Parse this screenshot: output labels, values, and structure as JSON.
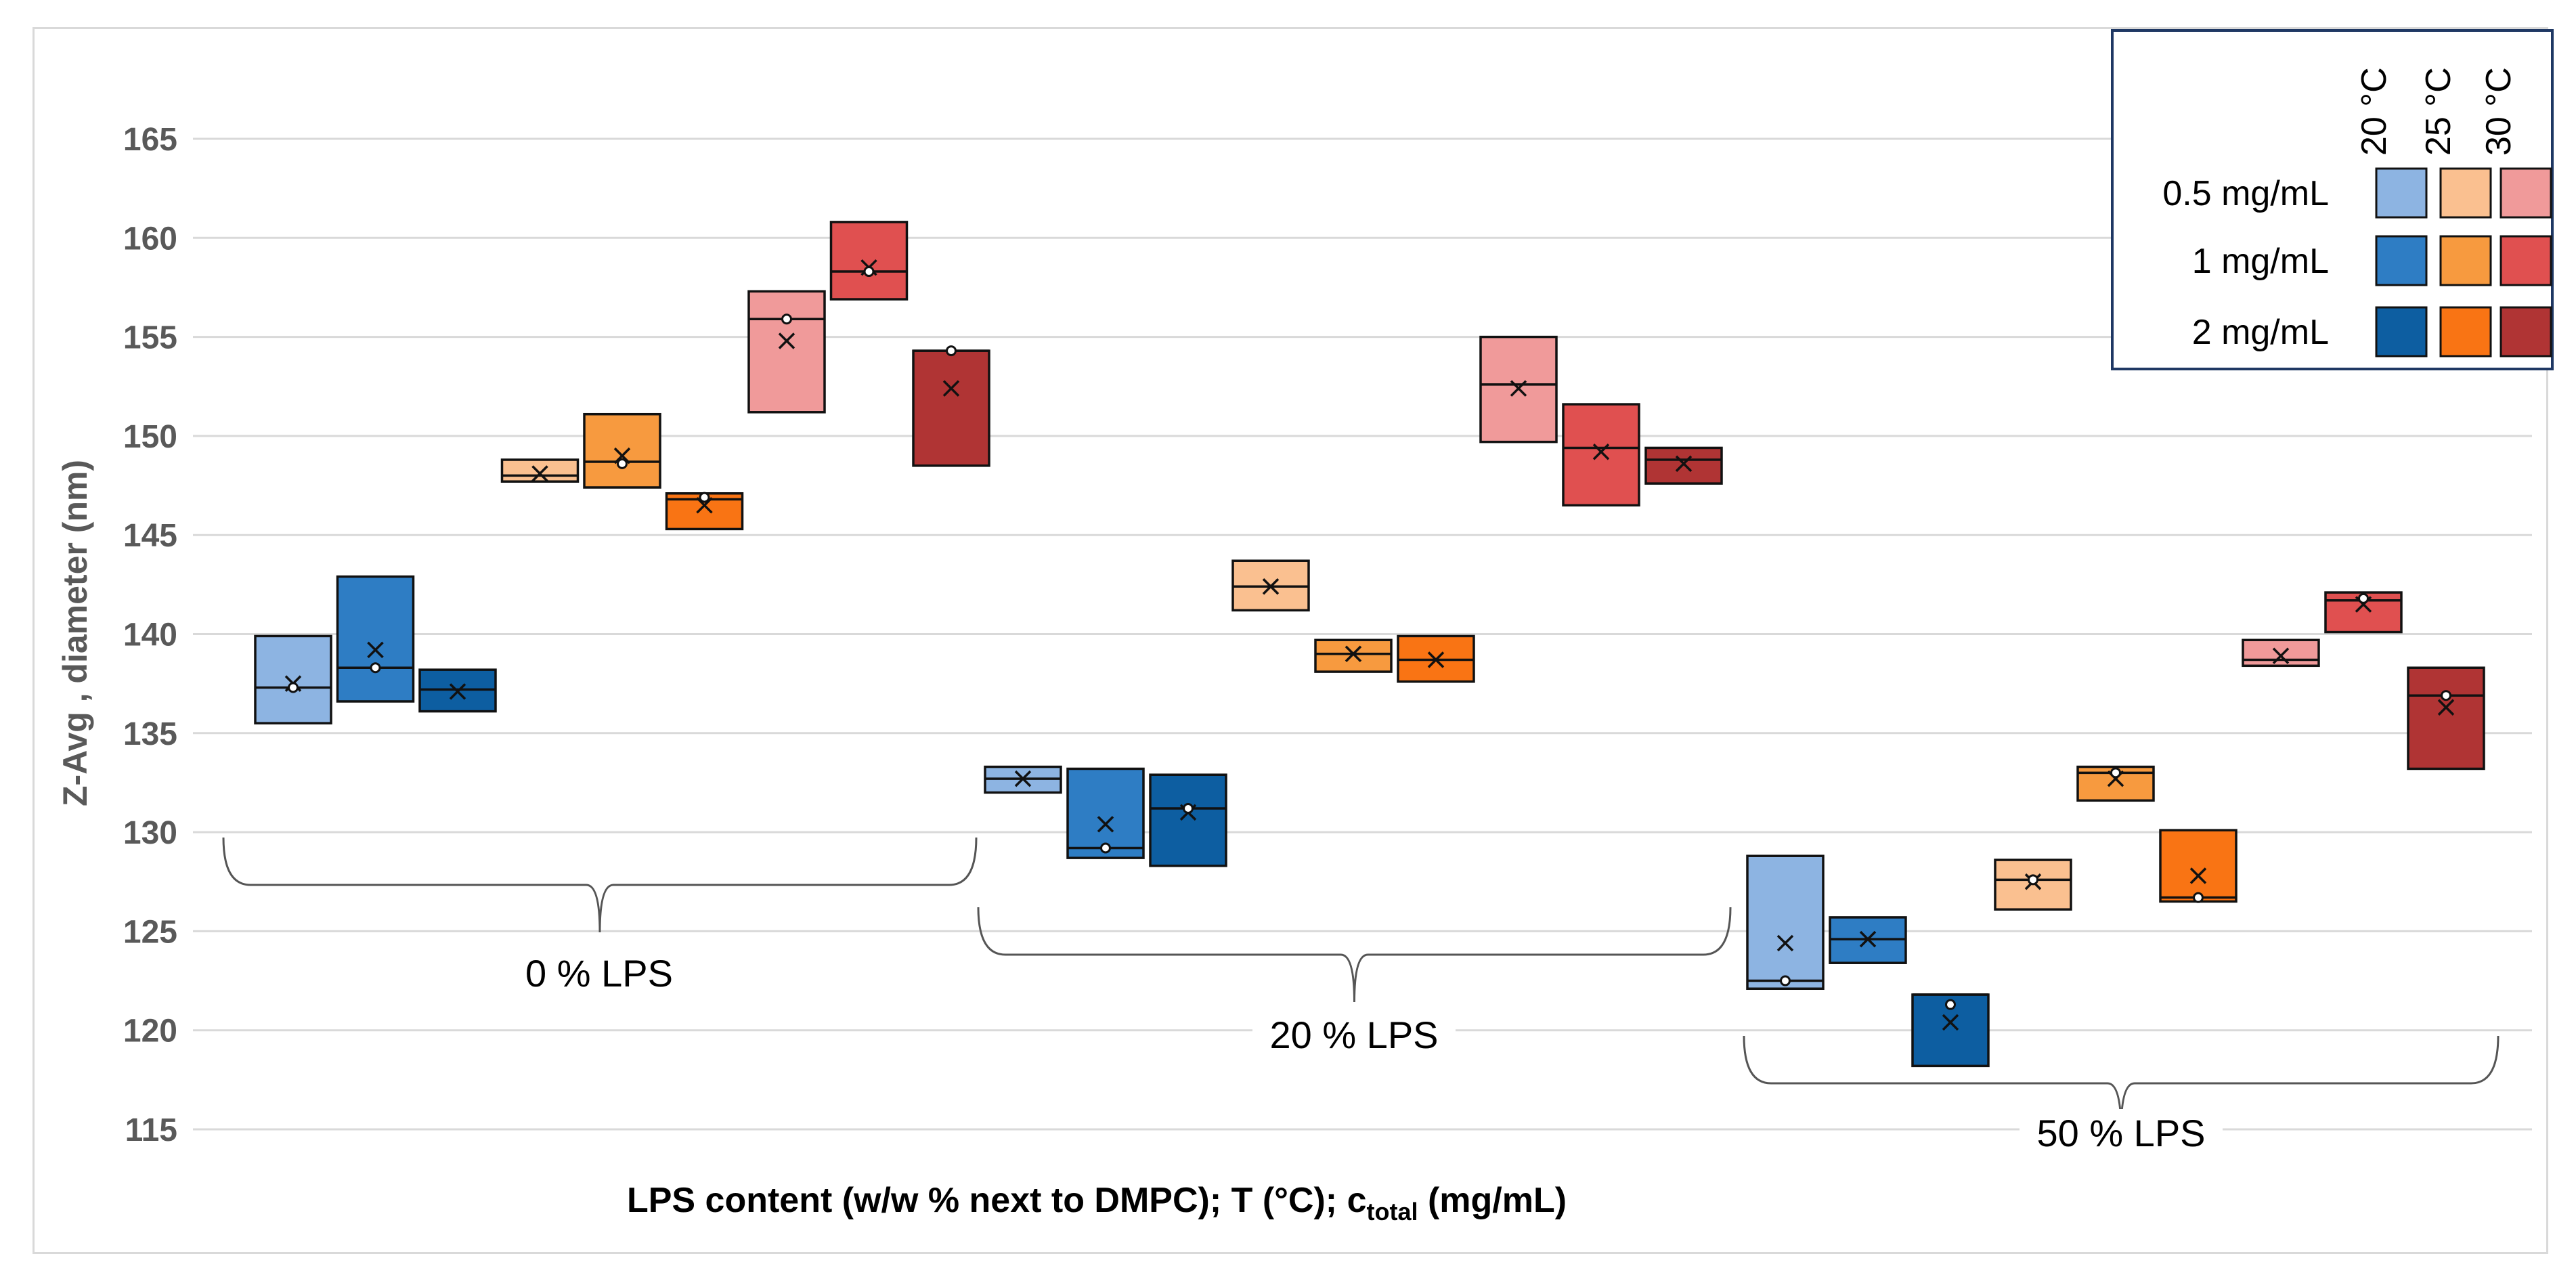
{
  "chart_data": {
    "type": "box",
    "title": "",
    "ylabel": "Z-Avg , diameter (nm)",
    "xlabel": {
      "main": "LPS content (w/w % next to DMPC); T (°C); c",
      "sub": "total",
      "tail": " (mg/mL)"
    },
    "ylim": [
      115,
      165
    ],
    "yticks": [
      115,
      120,
      125,
      130,
      135,
      140,
      145,
      150,
      155,
      160,
      165
    ],
    "groups": [
      "0 % LPS",
      "20 % LPS",
      "50 % LPS"
    ],
    "legend": {
      "temperatures": [
        "20 °C",
        "25 °C",
        "30 °C"
      ],
      "concentrations": [
        "0.5 mg/mL",
        "1 mg/mL",
        "2 mg/mL"
      ],
      "colors": [
        [
          "#8db4e2",
          "#fac090",
          "#f09a9a"
        ],
        [
          "#2e7dc4",
          "#f79a3f",
          "#e05050"
        ],
        [
          "#0d5ea1",
          "#f97414",
          "#b03434"
        ]
      ]
    },
    "boxes": [
      {
        "group": "0 % LPS",
        "temp": "20 °C",
        "conc": "0.5 mg/mL",
        "min": 135.5,
        "max": 139.9,
        "median": 137.3,
        "mean": 137.5,
        "points": [
          137.3
        ]
      },
      {
        "group": "0 % LPS",
        "temp": "20 °C",
        "conc": "1 mg/mL",
        "min": 136.6,
        "max": 142.9,
        "median": 138.3,
        "mean": 139.2,
        "points": [
          138.3
        ]
      },
      {
        "group": "0 % LPS",
        "temp": "20 °C",
        "conc": "2 mg/mL",
        "min": 136.1,
        "max": 138.2,
        "median": 137.2,
        "mean": 137.1,
        "points": []
      },
      {
        "group": "0 % LPS",
        "temp": "25 °C",
        "conc": "0.5 mg/mL",
        "min": 147.7,
        "max": 148.8,
        "median": 148.0,
        "mean": 148.1,
        "points": []
      },
      {
        "group": "0 % LPS",
        "temp": "25 °C",
        "conc": "1 mg/mL",
        "min": 147.4,
        "max": 151.1,
        "median": 148.7,
        "mean": 149.0,
        "points": [
          148.6
        ]
      },
      {
        "group": "0 % LPS",
        "temp": "25 °C",
        "conc": "2 mg/mL",
        "min": 145.3,
        "max": 147.1,
        "median": 146.8,
        "mean": 146.5,
        "points": [
          146.9
        ]
      },
      {
        "group": "0 % LPS",
        "temp": "30 °C",
        "conc": "0.5 mg/mL",
        "min": 151.2,
        "max": 157.3,
        "median": 155.9,
        "mean": 154.8,
        "points": [
          155.9
        ]
      },
      {
        "group": "0 % LPS",
        "temp": "30 °C",
        "conc": "1 mg/mL",
        "min": 156.9,
        "max": 160.8,
        "median": 158.3,
        "mean": 158.5,
        "points": [
          158.3
        ]
      },
      {
        "group": "0 % LPS",
        "temp": "30 °C",
        "conc": "2 mg/mL",
        "min": 148.5,
        "max": 154.3,
        "median": 154.3,
        "mean": 152.4,
        "points": [
          154.3
        ]
      },
      {
        "group": "20 % LPS",
        "temp": "20 °C",
        "conc": "0.5 mg/mL",
        "min": 132.0,
        "max": 133.3,
        "median": 132.7,
        "mean": 132.7,
        "points": []
      },
      {
        "group": "20 % LPS",
        "temp": "20 °C",
        "conc": "1 mg/mL",
        "min": 128.7,
        "max": 133.2,
        "median": 129.2,
        "mean": 130.4,
        "points": [
          129.2
        ]
      },
      {
        "group": "20 % LPS",
        "temp": "20 °C",
        "conc": "2 mg/mL",
        "min": 128.3,
        "max": 132.9,
        "median": 131.2,
        "mean": 131.0,
        "points": [
          131.2
        ]
      },
      {
        "group": "20 % LPS",
        "temp": "25 °C",
        "conc": "0.5 mg/mL",
        "min": 141.2,
        "max": 143.7,
        "median": 142.4,
        "mean": 142.4,
        "points": []
      },
      {
        "group": "20 % LPS",
        "temp": "25 °C",
        "conc": "1 mg/mL",
        "min": 138.1,
        "max": 139.7,
        "median": 139.0,
        "mean": 139.0,
        "points": []
      },
      {
        "group": "20 % LPS",
        "temp": "25 °C",
        "conc": "2 mg/mL",
        "min": 137.6,
        "max": 139.9,
        "median": 138.7,
        "mean": 138.7,
        "points": []
      },
      {
        "group": "20 % LPS",
        "temp": "30 °C",
        "conc": "0.5 mg/mL",
        "min": 149.7,
        "max": 155.0,
        "median": 152.6,
        "mean": 152.4,
        "points": []
      },
      {
        "group": "20 % LPS",
        "temp": "30 °C",
        "conc": "1 mg/mL",
        "min": 146.5,
        "max": 151.6,
        "median": 149.4,
        "mean": 149.2,
        "points": []
      },
      {
        "group": "20 % LPS",
        "temp": "30 °C",
        "conc": "2 mg/mL",
        "min": 147.6,
        "max": 149.4,
        "median": 148.8,
        "mean": 148.6,
        "points": []
      },
      {
        "group": "50 % LPS",
        "temp": "20 °C",
        "conc": "0.5 mg/mL",
        "min": 122.1,
        "max": 128.8,
        "median": 122.5,
        "mean": 124.4,
        "points": [
          122.5
        ]
      },
      {
        "group": "50 % LPS",
        "temp": "20 °C",
        "conc": "1 mg/mL",
        "min": 123.4,
        "max": 125.7,
        "median": 124.6,
        "mean": 124.6,
        "points": []
      },
      {
        "group": "50 % LPS",
        "temp": "20 °C",
        "conc": "2 mg/mL",
        "min": 118.2,
        "max": 121.8,
        "median": 121.8,
        "mean": 120.4,
        "points": [
          121.3
        ]
      },
      {
        "group": "50 % LPS",
        "temp": "25 °C",
        "conc": "0.5 mg/mL",
        "min": 126.1,
        "max": 128.6,
        "median": 127.6,
        "mean": 127.5,
        "points": [
          127.6
        ]
      },
      {
        "group": "50 % LPS",
        "temp": "25 °C",
        "conc": "1 mg/mL",
        "min": 131.6,
        "max": 133.3,
        "median": 133.0,
        "mean": 132.7,
        "points": [
          133.0
        ]
      },
      {
        "group": "50 % LPS",
        "temp": "25 °C",
        "conc": "2 mg/mL",
        "min": 126.5,
        "max": 130.1,
        "median": 126.7,
        "mean": 127.8,
        "points": [
          126.7
        ]
      },
      {
        "group": "50 % LPS",
        "temp": "30 °C",
        "conc": "0.5 mg/mL",
        "min": 138.4,
        "max": 139.7,
        "median": 138.7,
        "mean": 138.9,
        "points": []
      },
      {
        "group": "50 % LPS",
        "temp": "30 °C",
        "conc": "1 mg/mL",
        "min": 140.1,
        "max": 142.1,
        "median": 141.7,
        "mean": 141.5,
        "points": [
          141.8
        ]
      },
      {
        "group": "50 % LPS",
        "temp": "30 °C",
        "conc": "2 mg/mL",
        "min": 133.2,
        "max": 138.3,
        "median": 136.9,
        "mean": 136.3,
        "points": [
          136.9
        ]
      }
    ]
  }
}
